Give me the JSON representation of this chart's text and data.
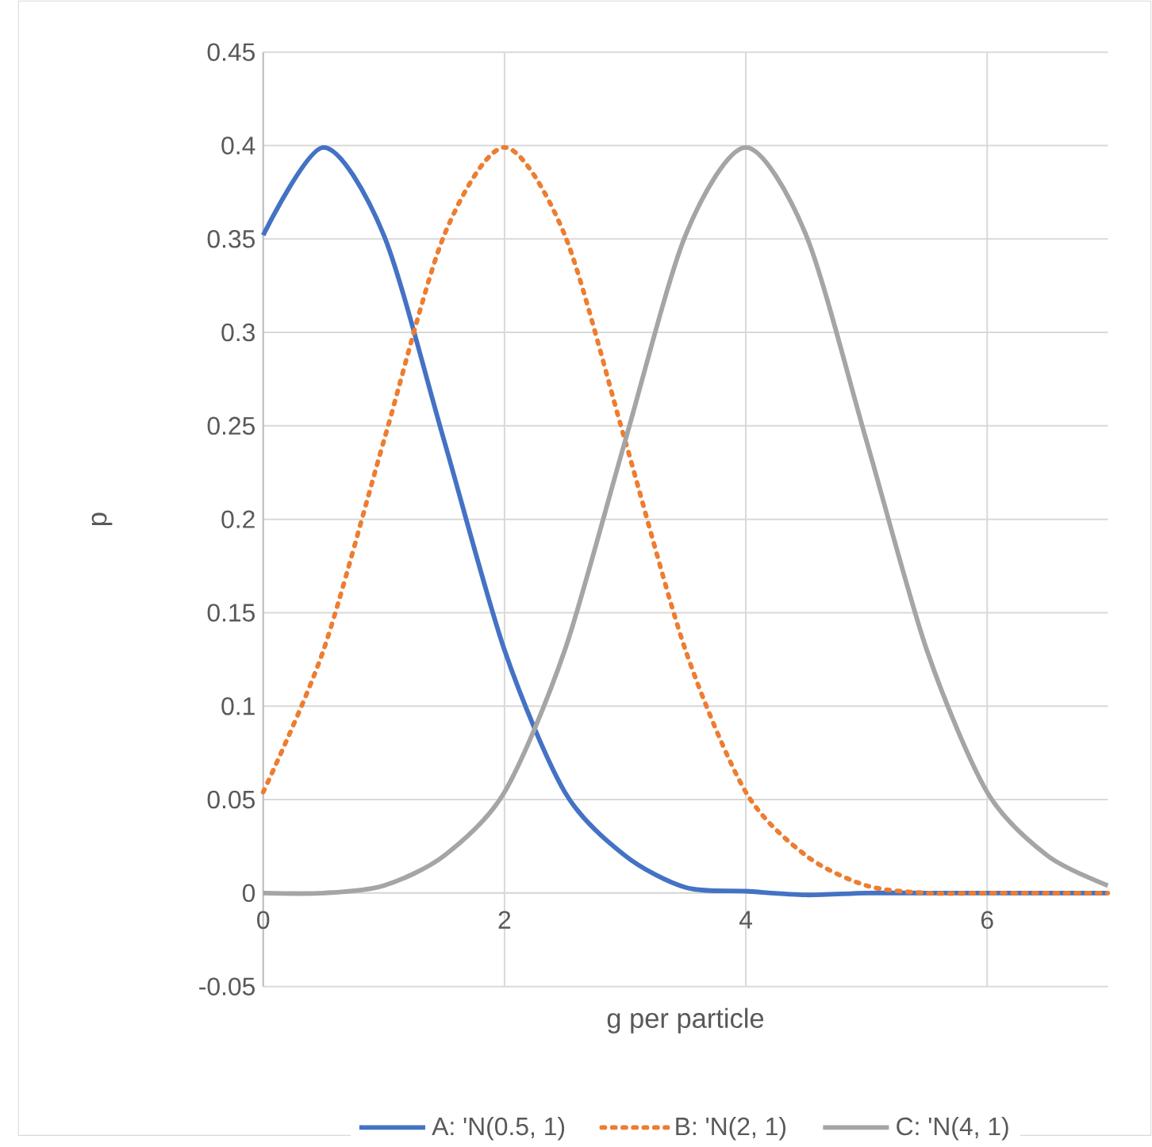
{
  "chart_data": {
    "type": "line",
    "xlabel": "g per particle",
    "ylabel": "p",
    "x": [
      0,
      0.5,
      1,
      1.5,
      2,
      2.5,
      3,
      3.5,
      4,
      4.5,
      5,
      5.5,
      6,
      6.5,
      7
    ],
    "series": [
      {
        "name": "A: 'N(0.5, 1)",
        "color": "#4472c4",
        "line_style": "solid",
        "values": [
          0.352,
          0.399,
          0.352,
          0.242,
          0.13,
          0.054,
          0.02,
          0.003,
          0.001,
          -0.001,
          0,
          0,
          0,
          0,
          0
        ]
      },
      {
        "name": "B: 'N(2, 1)",
        "color": "#ed7d31",
        "line_style": "dotted",
        "values": [
          0.054,
          0.13,
          0.242,
          0.352,
          0.399,
          0.352,
          0.242,
          0.13,
          0.054,
          0.02,
          0.004,
          0,
          0,
          0,
          0
        ]
      },
      {
        "name": "C: 'N(4, 1)",
        "color": "#a5a5a5",
        "line_style": "solid",
        "values": [
          0,
          0,
          0.004,
          0.02,
          0.054,
          0.13,
          0.242,
          0.352,
          0.399,
          0.352,
          0.242,
          0.13,
          0.054,
          0.02,
          0.004
        ]
      }
    ],
    "xlim": [
      0,
      7
    ],
    "xticks": [
      0,
      2,
      4,
      6
    ],
    "ylim": [
      -0.05,
      0.45
    ],
    "yticks": [
      -0.05,
      0,
      0.05,
      0.1,
      0.15,
      0.2,
      0.25,
      0.3,
      0.35,
      0.4,
      0.45
    ],
    "grid": true,
    "legend": "bottom",
    "marker": "none"
  }
}
